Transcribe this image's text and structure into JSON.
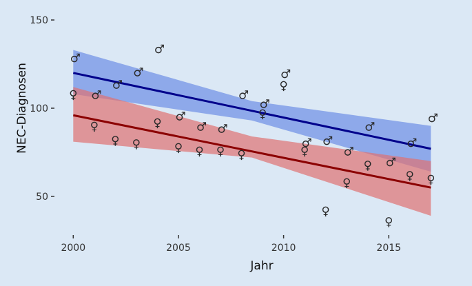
{
  "chart_data": {
    "type": "scatter",
    "title": "",
    "xlabel": "Jahr",
    "ylabel": "NEC-Diagnosen",
    "xlim": [
      1999.6,
      2017.4
    ],
    "ylim": [
      27,
      155
    ],
    "x_ticks": [
      2000,
      2005,
      2010,
      2015
    ],
    "y_ticks": [
      50,
      100,
      150
    ],
    "grid": false,
    "legend": "none",
    "series": [
      {
        "marker": "♂",
        "color": "#00008b",
        "band_color": "#6d8fe6",
        "points": [
          {
            "x": 2000,
            "y": 127
          },
          {
            "x": 2001,
            "y": 106
          },
          {
            "x": 2002,
            "y": 112
          },
          {
            "x": 2003,
            "y": 119
          },
          {
            "x": 2004,
            "y": 132
          },
          {
            "x": 2005,
            "y": 94
          },
          {
            "x": 2006,
            "y": 88
          },
          {
            "x": 2007,
            "y": 87
          },
          {
            "x": 2008,
            "y": 106
          },
          {
            "x": 2009,
            "y": 101
          },
          {
            "x": 2010,
            "y": 118
          },
          {
            "x": 2011,
            "y": 79
          },
          {
            "x": 2012,
            "y": 80
          },
          {
            "x": 2013,
            "y": 74
          },
          {
            "x": 2014,
            "y": 88
          },
          {
            "x": 2015,
            "y": 68
          },
          {
            "x": 2016,
            "y": 79
          },
          {
            "x": 2017,
            "y": 93
          }
        ],
        "trend": [
          {
            "x": 2000,
            "y": 120
          },
          {
            "x": 2017,
            "y": 77
          }
        ],
        "band_lower": [
          {
            "x": 2000,
            "y": 108
          },
          {
            "x": 2008.5,
            "y": 93
          },
          {
            "x": 2017,
            "y": 64
          }
        ],
        "band_upper": [
          {
            "x": 2000,
            "y": 133
          },
          {
            "x": 2008.5,
            "y": 104
          },
          {
            "x": 2017,
            "y": 90
          }
        ]
      },
      {
        "marker": "♀",
        "color": "#8b0000",
        "band_color": "#e07272",
        "points": [
          {
            "x": 2000,
            "y": 109
          },
          {
            "x": 2001,
            "y": 91
          },
          {
            "x": 2002,
            "y": 83
          },
          {
            "x": 2003,
            "y": 81
          },
          {
            "x": 2004,
            "y": 93
          },
          {
            "x": 2005,
            "y": 79
          },
          {
            "x": 2006,
            "y": 77
          },
          {
            "x": 2007,
            "y": 77
          },
          {
            "x": 2008,
            "y": 75
          },
          {
            "x": 2009,
            "y": 98
          },
          {
            "x": 2010,
            "y": 114
          },
          {
            "x": 2011,
            "y": 77
          },
          {
            "x": 2012,
            "y": 43
          },
          {
            "x": 2013,
            "y": 59
          },
          {
            "x": 2014,
            "y": 69
          },
          {
            "x": 2015,
            "y": 37
          },
          {
            "x": 2016,
            "y": 63
          },
          {
            "x": 2017,
            "y": 61
          }
        ],
        "trend": [
          {
            "x": 2000,
            "y": 96
          },
          {
            "x": 2017,
            "y": 55
          }
        ],
        "band_lower": [
          {
            "x": 2000,
            "y": 81
          },
          {
            "x": 2008.5,
            "y": 72
          },
          {
            "x": 2017,
            "y": 39
          }
        ],
        "band_upper": [
          {
            "x": 2000,
            "y": 112
          },
          {
            "x": 2008.5,
            "y": 84
          },
          {
            "x": 2017,
            "y": 70
          }
        ]
      }
    ]
  }
}
